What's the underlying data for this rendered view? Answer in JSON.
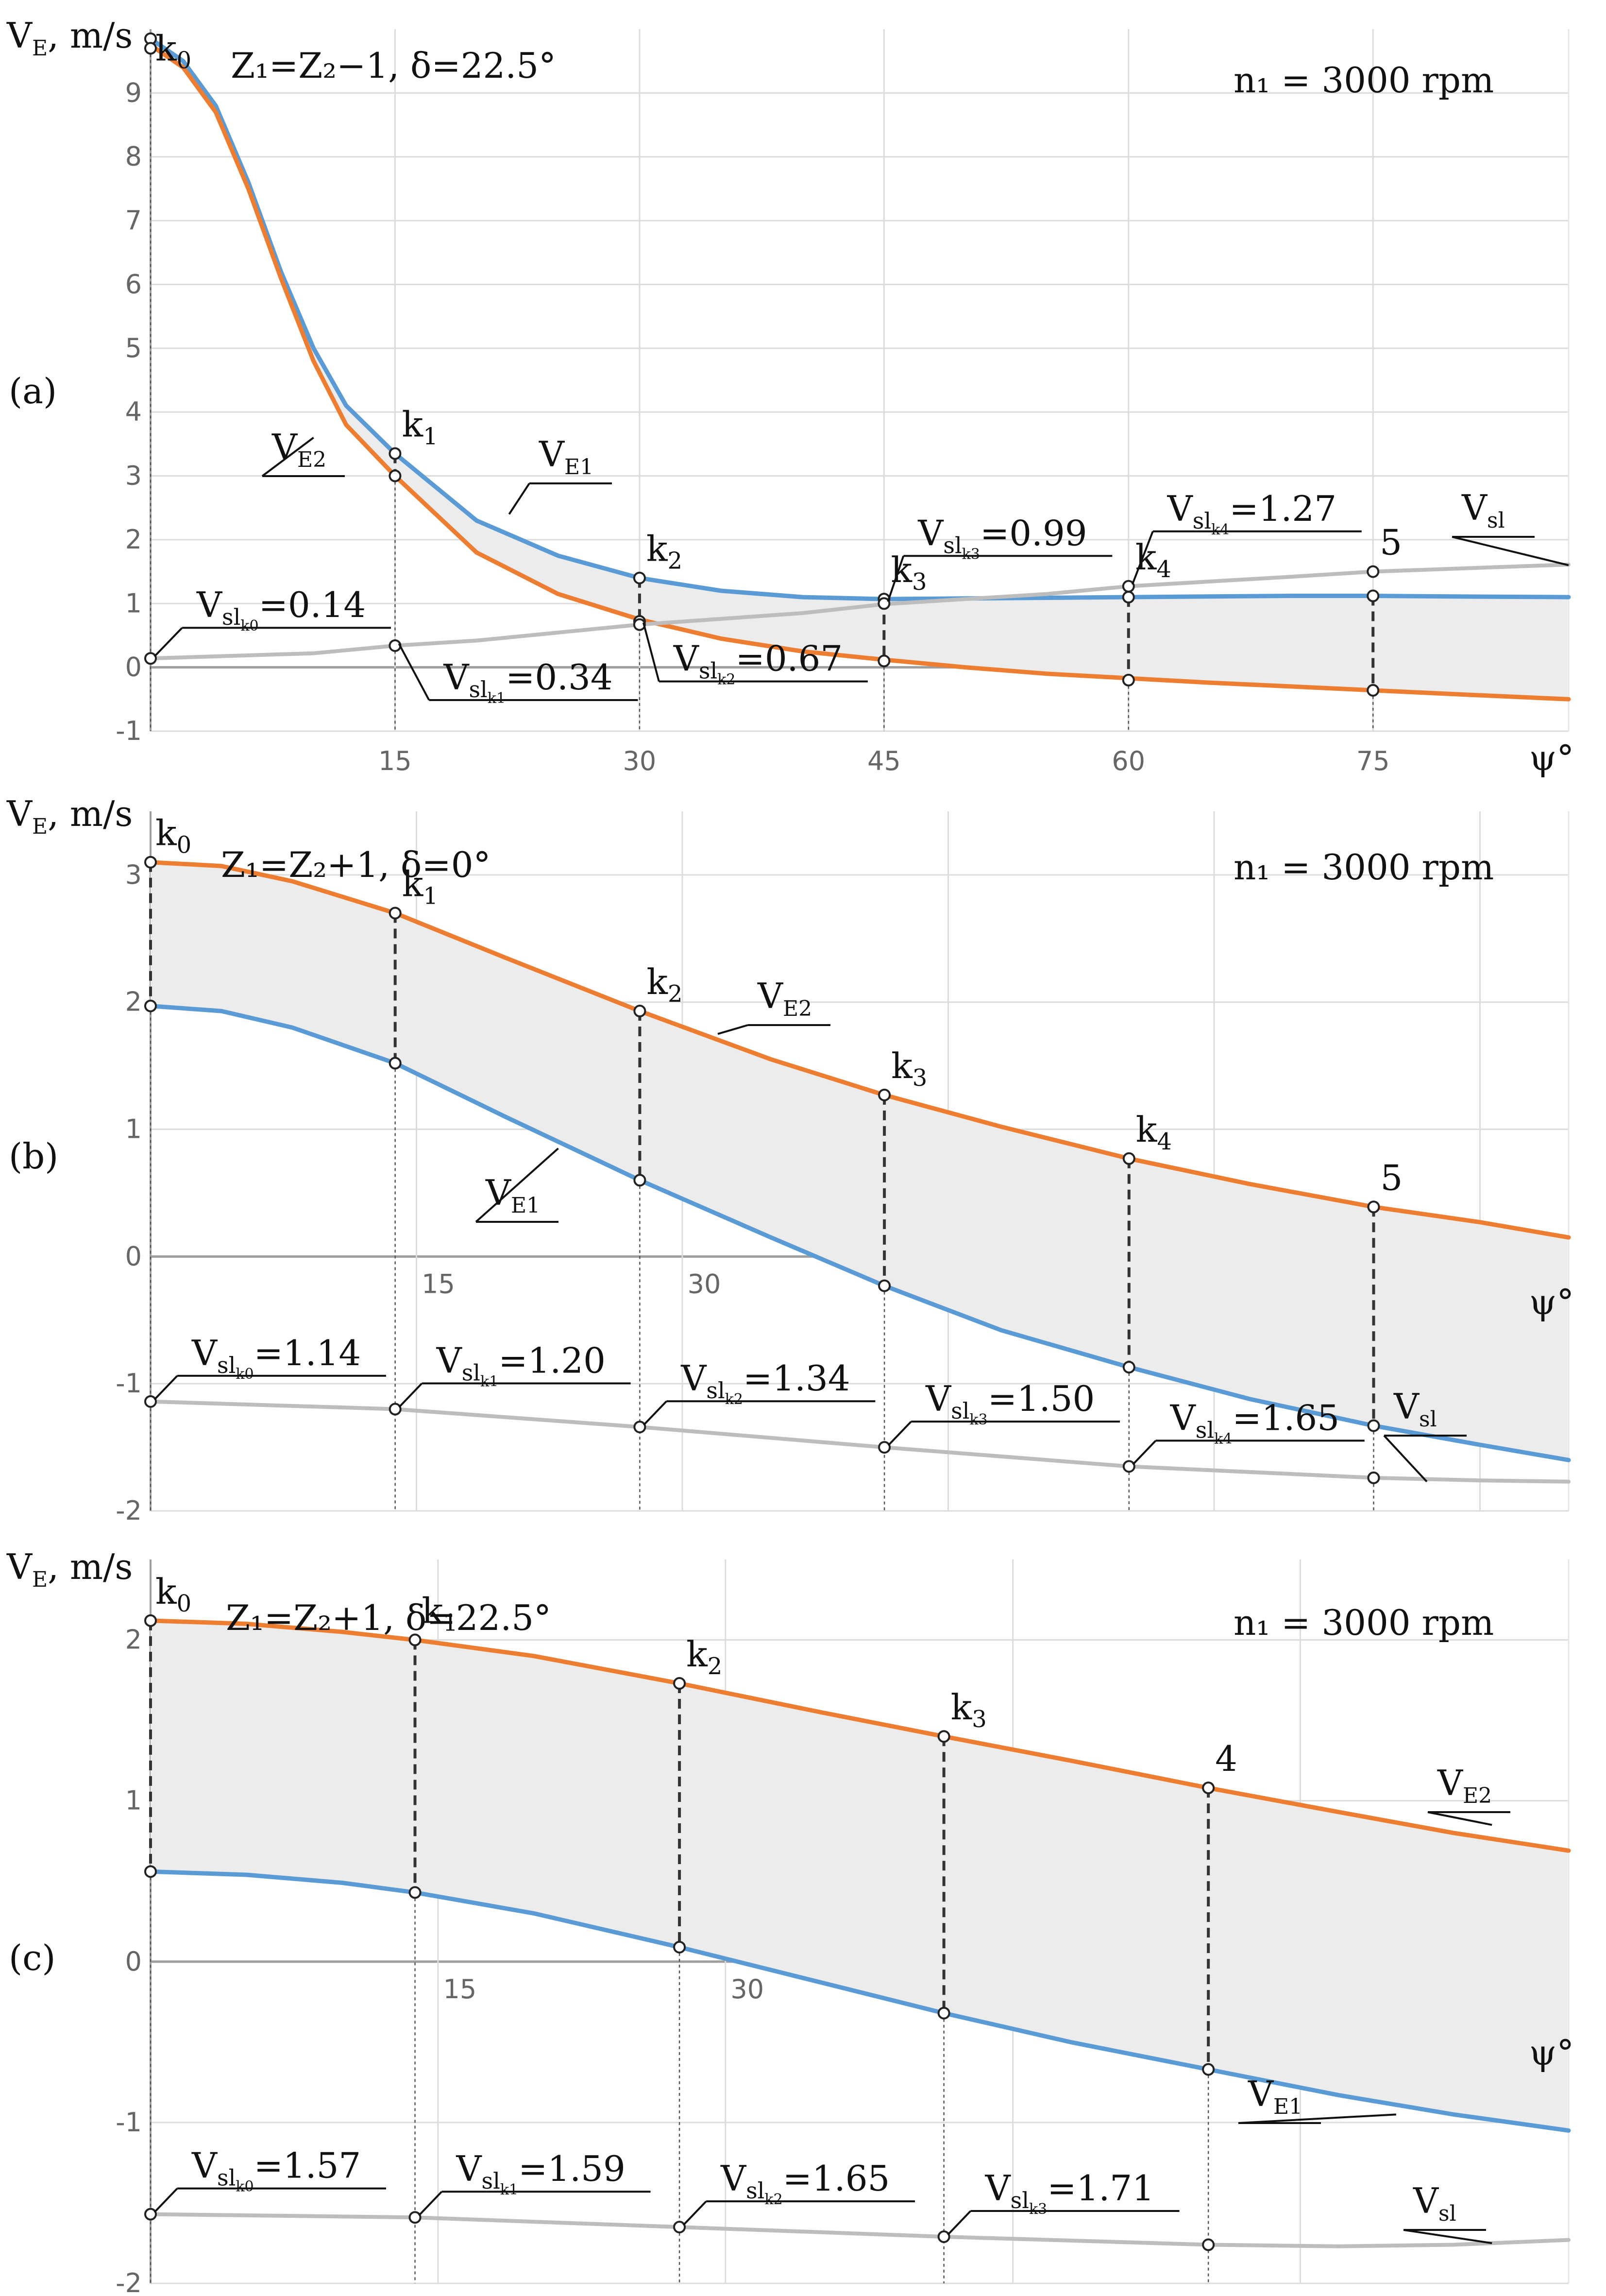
{
  "chart_data": [
    {
      "type": "line",
      "panel_label": "(a)",
      "title": "Z₁=Z₂−1, δ=22.5°",
      "speed": "n₁ = 3000 rpm",
      "ylabel": "V_E, m/s",
      "xlabel": "ψ°",
      "xlim": [
        0,
        87
      ],
      "ylim": [
        -1,
        10
      ],
      "yticks": [
        -1,
        0,
        1,
        2,
        3,
        4,
        5,
        6,
        7,
        8,
        9
      ],
      "xticks": [
        15,
        30,
        45,
        60,
        75
      ],
      "series": [
        {
          "name": "V_E1",
          "sub": "E1",
          "color": "#5b9bd5",
          "x": [
            0,
            2,
            4,
            6,
            8,
            10,
            12,
            15,
            20,
            25,
            30,
            35,
            40,
            45,
            50,
            55,
            60,
            65,
            70,
            75,
            80,
            87
          ],
          "y": [
            9.85,
            9.5,
            8.8,
            7.6,
            6.2,
            5.0,
            4.1,
            3.35,
            2.3,
            1.75,
            1.4,
            1.2,
            1.1,
            1.07,
            1.08,
            1.09,
            1.1,
            1.11,
            1.12,
            1.12,
            1.11,
            1.1
          ]
        },
        {
          "name": "V_E2",
          "sub": "E2",
          "color": "#ed7d31",
          "x": [
            0,
            2,
            4,
            6,
            8,
            10,
            12,
            15,
            20,
            25,
            30,
            35,
            40,
            45,
            50,
            55,
            60,
            65,
            70,
            75,
            80,
            87
          ],
          "y": [
            9.75,
            9.4,
            8.7,
            7.5,
            6.1,
            4.8,
            3.8,
            3.0,
            1.8,
            1.15,
            0.75,
            0.45,
            0.25,
            0.12,
            0.0,
            -0.1,
            -0.17,
            -0.24,
            -0.3,
            -0.36,
            -0.42,
            -0.5
          ]
        },
        {
          "name": "V_sl",
          "sub": "sl",
          "color": "#bdbdbd",
          "x": [
            0,
            10,
            15,
            20,
            30,
            40,
            45,
            55,
            60,
            70,
            75,
            87
          ],
          "y": [
            0.14,
            0.22,
            0.34,
            0.42,
            0.67,
            0.85,
            0.99,
            1.15,
            1.27,
            1.42,
            1.5,
            1.61
          ]
        }
      ],
      "guides": [
        {
          "x": 0,
          "y_hi": 9.85,
          "y_lo": 9.7,
          "sl": 0.14
        },
        {
          "x": 15,
          "y_hi": 3.35,
          "y_lo": 3.0,
          "sl": 0.34
        },
        {
          "x": 30,
          "y_hi": 1.4,
          "y_lo": 0.72,
          "sl": 0.67
        },
        {
          "x": 45,
          "y_hi": 1.07,
          "y_lo": 0.1,
          "sl": 1.0
        },
        {
          "x": 60,
          "y_hi": 1.1,
          "y_lo": -0.2,
          "sl": 1.27
        },
        {
          "x": 75,
          "y_hi": 1.12,
          "y_lo": -0.36,
          "sl": 1.5
        }
      ],
      "k_labels": [
        {
          "base": "k",
          "sub": "0",
          "x": 0,
          "y": 9.85
        },
        {
          "base": "k",
          "sub": "1",
          "x": 15,
          "y": 3.35
        },
        {
          "base": "k",
          "sub": "2",
          "x": 30,
          "y": 1.4
        },
        {
          "base": "k",
          "sub": "3",
          "x": 45,
          "y": 1.07
        },
        {
          "base": "k",
          "sub": "4",
          "x": 60,
          "y": 1.27
        },
        {
          "base": "5",
          "sub": "",
          "x": 75,
          "y": 1.5
        }
      ],
      "vsl_labels": [
        {
          "k": "k0",
          "kd": "0",
          "value": "=0.14"
        },
        {
          "k": "k1",
          "kd": "1",
          "value": "=0.34"
        },
        {
          "k": "k2",
          "kd": "2",
          "value": "=0.67"
        },
        {
          "k": "k3",
          "kd": "3",
          "value": "=0.99"
        },
        {
          "k": "k4",
          "kd": "4",
          "value": "=1.27"
        }
      ]
    },
    {
      "type": "line",
      "panel_label": "(b)",
      "title": "Z₁=Z₂+1, δ=0°",
      "speed": "n₁ = 3000 rpm",
      "ylabel": "V_E, m/s",
      "xlabel": "ψ°",
      "xlim": [
        0,
        80
      ],
      "ylim": [
        -2,
        3.5
      ],
      "yticks": [
        -2,
        -1,
        0,
        1,
        2,
        3
      ],
      "xticks": [
        15,
        30,
        45,
        60,
        75
      ],
      "series": [
        {
          "name": "V_E2",
          "sub": "E2",
          "color": "#ed7d31",
          "x": [
            0,
            4,
            8,
            13.8,
            20,
            27.6,
            35,
            41.4,
            48,
            55.2,
            62,
            69,
            75,
            80
          ],
          "y": [
            3.1,
            3.07,
            2.95,
            2.7,
            2.35,
            1.93,
            1.55,
            1.27,
            1.02,
            0.77,
            0.57,
            0.39,
            0.27,
            0.15
          ]
        },
        {
          "name": "V_E1",
          "sub": "E1",
          "color": "#5b9bd5",
          "x": [
            0,
            4,
            8,
            13.8,
            20,
            27.6,
            35,
            41.4,
            48,
            55.2,
            62,
            69,
            75,
            80
          ],
          "y": [
            1.97,
            1.93,
            1.8,
            1.52,
            1.1,
            0.6,
            0.15,
            -0.23,
            -0.58,
            -0.87,
            -1.12,
            -1.33,
            -1.48,
            -1.6
          ]
        },
        {
          "name": "V_sl",
          "sub": "sl",
          "color": "#bdbdbd",
          "x": [
            0,
            13.8,
            27.6,
            41.4,
            55.2,
            69,
            75,
            80
          ],
          "y": [
            -1.14,
            -1.2,
            -1.34,
            -1.5,
            -1.65,
            -1.74,
            -1.76,
            -1.77
          ]
        }
      ],
      "guides": [
        {
          "x": 0,
          "y_hi": 3.1,
          "y_lo": 1.97,
          "sl": -1.14
        },
        {
          "x": 13.8,
          "y_hi": 2.7,
          "y_lo": 1.52,
          "sl": -1.2
        },
        {
          "x": 27.6,
          "y_hi": 1.93,
          "y_lo": 0.6,
          "sl": -1.34
        },
        {
          "x": 41.4,
          "y_hi": 1.27,
          "y_lo": -0.23,
          "sl": -1.5
        },
        {
          "x": 55.2,
          "y_hi": 0.77,
          "y_lo": -0.87,
          "sl": -1.65
        },
        {
          "x": 69,
          "y_hi": 0.39,
          "y_lo": -1.33,
          "sl": -1.74
        }
      ],
      "k_labels": [
        {
          "base": "k",
          "sub": "0",
          "x": 0,
          "y": 3.1
        },
        {
          "base": "k",
          "sub": "1",
          "x": 13.8,
          "y": 2.7
        },
        {
          "base": "k",
          "sub": "2",
          "x": 27.6,
          "y": 1.93
        },
        {
          "base": "k",
          "sub": "3",
          "x": 41.4,
          "y": 1.27
        },
        {
          "base": "k",
          "sub": "4",
          "x": 55.2,
          "y": 0.77
        },
        {
          "base": "5",
          "sub": "",
          "x": 69,
          "y": 0.39
        }
      ],
      "vsl_labels": [
        {
          "k": "k0",
          "kd": "0",
          "value": "=1.14"
        },
        {
          "k": "k1",
          "kd": "1",
          "value": "=1.20"
        },
        {
          "k": "k2",
          "kd": "2",
          "value": "=1.34"
        },
        {
          "k": "k3",
          "kd": "3",
          "value": "=1.50"
        },
        {
          "k": "k4",
          "kd": "4",
          "value": "=1.65"
        }
      ]
    },
    {
      "type": "line",
      "panel_label": "(c)",
      "title": "Z₁=Z₂+1, δ=22.5°",
      "speed": "n₁ = 3000 rpm",
      "ylabel": "V_E, m/s",
      "xlabel": "ψ°",
      "xlim": [
        0,
        74
      ],
      "ylim": [
        -2,
        2.5
      ],
      "yticks": [
        -2,
        -1,
        0,
        1,
        2
      ],
      "xticks": [
        15,
        30,
        45,
        60
      ],
      "series": [
        {
          "name": "V_E2",
          "sub": "E2",
          "color": "#ed7d31",
          "x": [
            0,
            5,
            10,
            13.8,
            20,
            27.6,
            35,
            41.4,
            48,
            55.2,
            62,
            68,
            74
          ],
          "y": [
            2.12,
            2.1,
            2.05,
            2.0,
            1.9,
            1.73,
            1.55,
            1.4,
            1.25,
            1.08,
            0.93,
            0.8,
            0.69
          ]
        },
        {
          "name": "V_E1",
          "sub": "E1",
          "color": "#5b9bd5",
          "x": [
            0,
            5,
            10,
            13.8,
            20,
            27.6,
            35,
            41.4,
            48,
            55.2,
            62,
            68,
            74
          ],
          "y": [
            0.56,
            0.54,
            0.49,
            0.43,
            0.3,
            0.09,
            -0.13,
            -0.32,
            -0.5,
            -0.67,
            -0.83,
            -0.95,
            -1.05
          ]
        },
        {
          "name": "V_sl",
          "sub": "sl",
          "color": "#bdbdbd",
          "x": [
            0,
            13.8,
            27.6,
            41.4,
            55.2,
            62,
            68,
            74
          ],
          "y": [
            -1.57,
            -1.59,
            -1.65,
            -1.71,
            -1.76,
            -1.77,
            -1.76,
            -1.73
          ]
        }
      ],
      "guides": [
        {
          "x": 0,
          "y_hi": 2.12,
          "y_lo": 0.56,
          "sl": -1.57
        },
        {
          "x": 13.8,
          "y_hi": 2.0,
          "y_lo": 0.43,
          "sl": -1.59
        },
        {
          "x": 27.6,
          "y_hi": 1.73,
          "y_lo": 0.09,
          "sl": -1.65
        },
        {
          "x": 41.4,
          "y_hi": 1.4,
          "y_lo": -0.32,
          "sl": -1.71
        },
        {
          "x": 55.2,
          "y_hi": 1.08,
          "y_lo": -0.67,
          "sl": -1.76
        }
      ],
      "k_labels": [
        {
          "base": "k",
          "sub": "0",
          "x": 0,
          "y": 2.12
        },
        {
          "base": "k",
          "sub": "1",
          "x": 13.8,
          "y": 2.0
        },
        {
          "base": "k",
          "sub": "2",
          "x": 27.6,
          "y": 1.73
        },
        {
          "base": "k",
          "sub": "3",
          "x": 41.4,
          "y": 1.4
        },
        {
          "base": "4",
          "sub": "",
          "x": 55.2,
          "y": 1.08
        }
      ],
      "vsl_labels": [
        {
          "k": "k0",
          "kd": "0",
          "value": "=1.57"
        },
        {
          "k": "k1",
          "kd": "1",
          "value": "=1.59"
        },
        {
          "k": "k2",
          "kd": "2",
          "value": "=1.65"
        },
        {
          "k": "k3",
          "kd": "3",
          "value": "=1.71"
        }
      ]
    }
  ]
}
